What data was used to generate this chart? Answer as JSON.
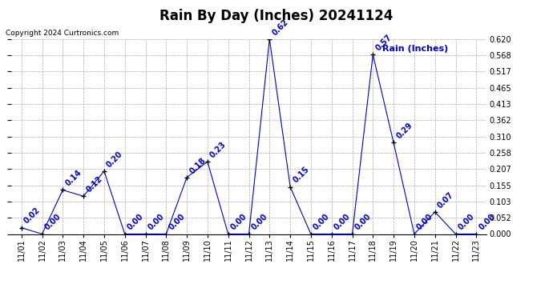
{
  "title": "Rain By Day (Inches) 20241124",
  "copyright": "Copyright 2024 Curtronics.com",
  "legend_label": "Rain (Inches)",
  "dates": [
    "11/01",
    "11/02",
    "11/03",
    "11/04",
    "11/05",
    "11/06",
    "11/07",
    "11/08",
    "11/09",
    "11/10",
    "11/11",
    "11/12",
    "11/13",
    "11/14",
    "11/15",
    "11/16",
    "11/17",
    "11/18",
    "11/19",
    "11/20",
    "11/21",
    "11/22",
    "11/23"
  ],
  "values": [
    0.02,
    0.0,
    0.14,
    0.12,
    0.2,
    0.0,
    0.0,
    0.0,
    0.18,
    0.23,
    0.0,
    0.0,
    0.62,
    0.15,
    0.0,
    0.0,
    0.0,
    0.57,
    0.29,
    0.0,
    0.07,
    0.0,
    0.0
  ],
  "line_color": "#0000cc",
  "marker_color": "#000000",
  "grid_color": "#aaaaaa",
  "background_color": "#ffffff",
  "title_fontsize": 12,
  "label_fontsize": 7,
  "annotation_fontsize": 7,
  "copyright_fontsize": 6.5,
  "legend_fontsize": 8,
  "ylim_min": 0.0,
  "ylim_max": 0.62,
  "yticks": [
    0.0,
    0.052,
    0.103,
    0.155,
    0.207,
    0.258,
    0.31,
    0.362,
    0.413,
    0.465,
    0.517,
    0.568,
    0.62
  ]
}
